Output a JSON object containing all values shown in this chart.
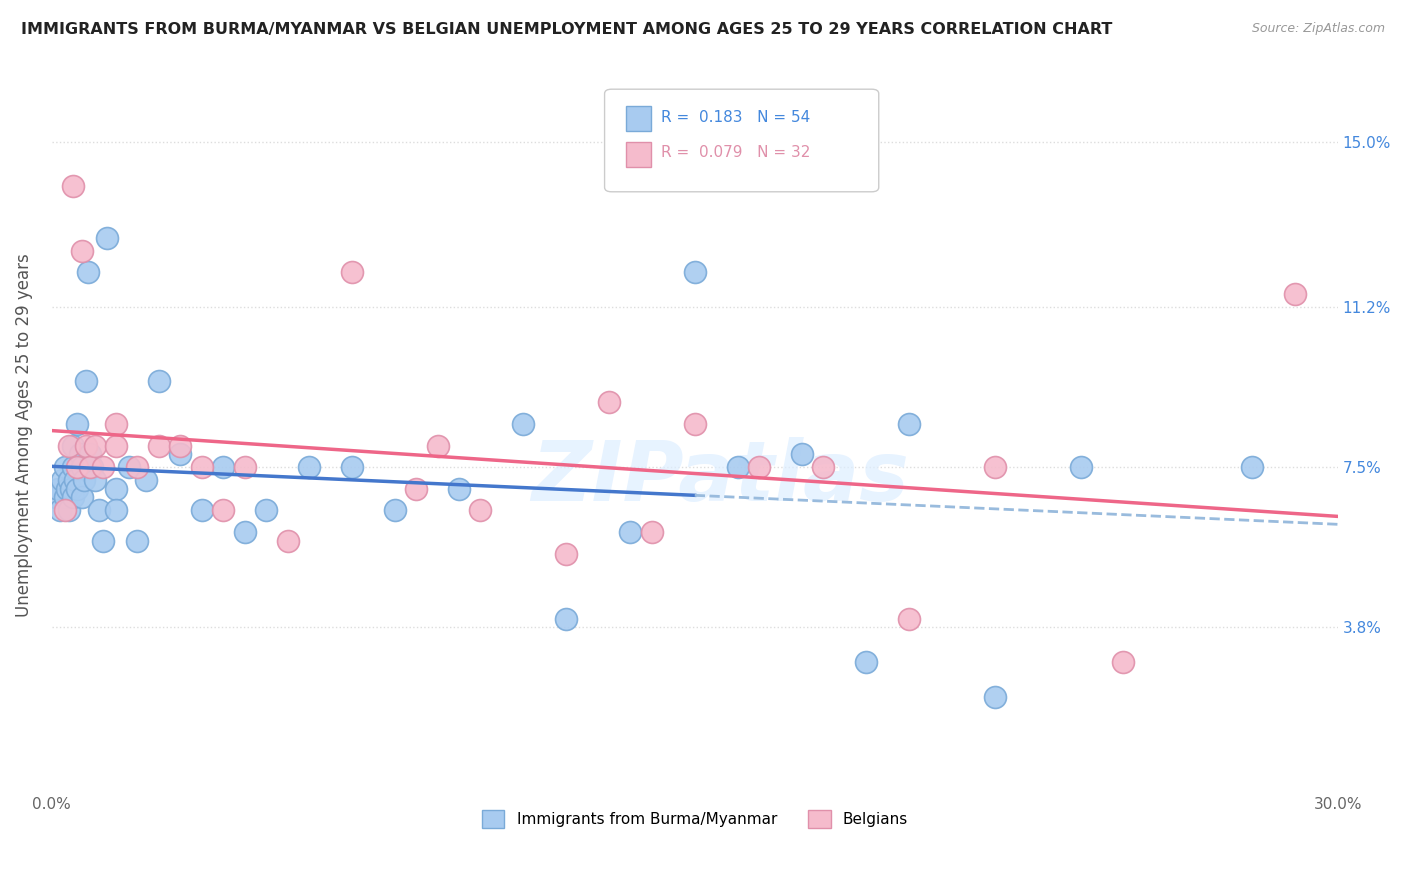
{
  "title": "IMMIGRANTS FROM BURMA/MYANMAR VS BELGIAN UNEMPLOYMENT AMONG AGES 25 TO 29 YEARS CORRELATION CHART",
  "source": "Source: ZipAtlas.com",
  "ylabel": "Unemployment Among Ages 25 to 29 years",
  "x_min": 0.0,
  "x_max": 30.0,
  "y_min": 0.0,
  "y_max": 16.5,
  "x_ticks": [
    0.0,
    5.0,
    10.0,
    15.0,
    20.0,
    25.0,
    30.0
  ],
  "x_tick_labels": [
    "0.0%",
    "",
    "",
    "",
    "",
    "",
    "30.0%"
  ],
  "y_ticks": [
    3.8,
    7.5,
    11.2,
    15.0
  ],
  "right_axis_labels": [
    "3.8%",
    "7.5%",
    "11.2%",
    "15.0%"
  ],
  "legend_val1": "0.183",
  "legend_nval1": "54",
  "legend_val2": "0.079",
  "legend_nval2": "32",
  "blue_color": "#A8CBF0",
  "blue_edge": "#7AAAD8",
  "pink_color": "#F5BBCC",
  "pink_edge": "#E090AA",
  "trend_blue_solid": "#4477CC",
  "trend_blue_dash": "#99BBDD",
  "trend_pink": "#EE6688",
  "grid_color": "#DDDDDD",
  "title_color": "#222222",
  "right_label_color": "#4488DD",
  "watermark": "ZIPatlas",
  "blue_x": [
    0.1,
    0.15,
    0.2,
    0.25,
    0.3,
    0.3,
    0.35,
    0.4,
    0.4,
    0.45,
    0.5,
    0.5,
    0.5,
    0.55,
    0.6,
    0.6,
    0.65,
    0.7,
    0.7,
    0.75,
    0.8,
    0.85,
    0.9,
    0.95,
    1.0,
    1.1,
    1.2,
    1.3,
    1.5,
    1.5,
    1.8,
    2.0,
    2.2,
    2.5,
    3.0,
    3.5,
    4.0,
    4.5,
    5.0,
    6.0,
    7.0,
    8.0,
    9.5,
    11.0,
    12.0,
    13.5,
    15.0,
    16.0,
    17.5,
    19.0,
    20.0,
    22.0,
    24.0,
    28.0
  ],
  "blue_y": [
    6.8,
    7.0,
    6.5,
    7.2,
    6.8,
    7.5,
    7.0,
    6.5,
    7.2,
    7.0,
    6.8,
    7.5,
    8.0,
    7.2,
    7.0,
    8.5,
    7.8,
    6.8,
    7.5,
    7.2,
    9.5,
    12.0,
    7.8,
    7.5,
    7.2,
    6.5,
    5.8,
    12.8,
    7.0,
    6.5,
    7.5,
    5.8,
    7.2,
    9.5,
    7.8,
    6.5,
    7.5,
    6.0,
    6.5,
    7.5,
    7.5,
    6.5,
    7.0,
    8.5,
    4.0,
    6.0,
    12.0,
    7.5,
    7.8,
    3.0,
    8.5,
    2.2,
    7.5,
    7.5
  ],
  "pink_x": [
    0.3,
    0.4,
    0.5,
    0.6,
    0.7,
    0.8,
    0.9,
    1.0,
    1.2,
    1.5,
    1.5,
    2.0,
    2.5,
    3.0,
    3.5,
    4.0,
    4.5,
    5.5,
    7.0,
    8.5,
    9.0,
    10.0,
    12.0,
    13.0,
    14.0,
    15.0,
    16.5,
    18.0,
    20.0,
    22.0,
    25.0,
    29.0
  ],
  "pink_y": [
    6.5,
    8.0,
    14.0,
    7.5,
    12.5,
    8.0,
    7.5,
    8.0,
    7.5,
    8.0,
    8.5,
    7.5,
    8.0,
    8.0,
    7.5,
    6.5,
    7.5,
    5.8,
    12.0,
    7.0,
    8.0,
    6.5,
    5.5,
    9.0,
    6.0,
    8.5,
    7.5,
    7.5,
    4.0,
    7.5,
    3.0,
    11.5
  ]
}
